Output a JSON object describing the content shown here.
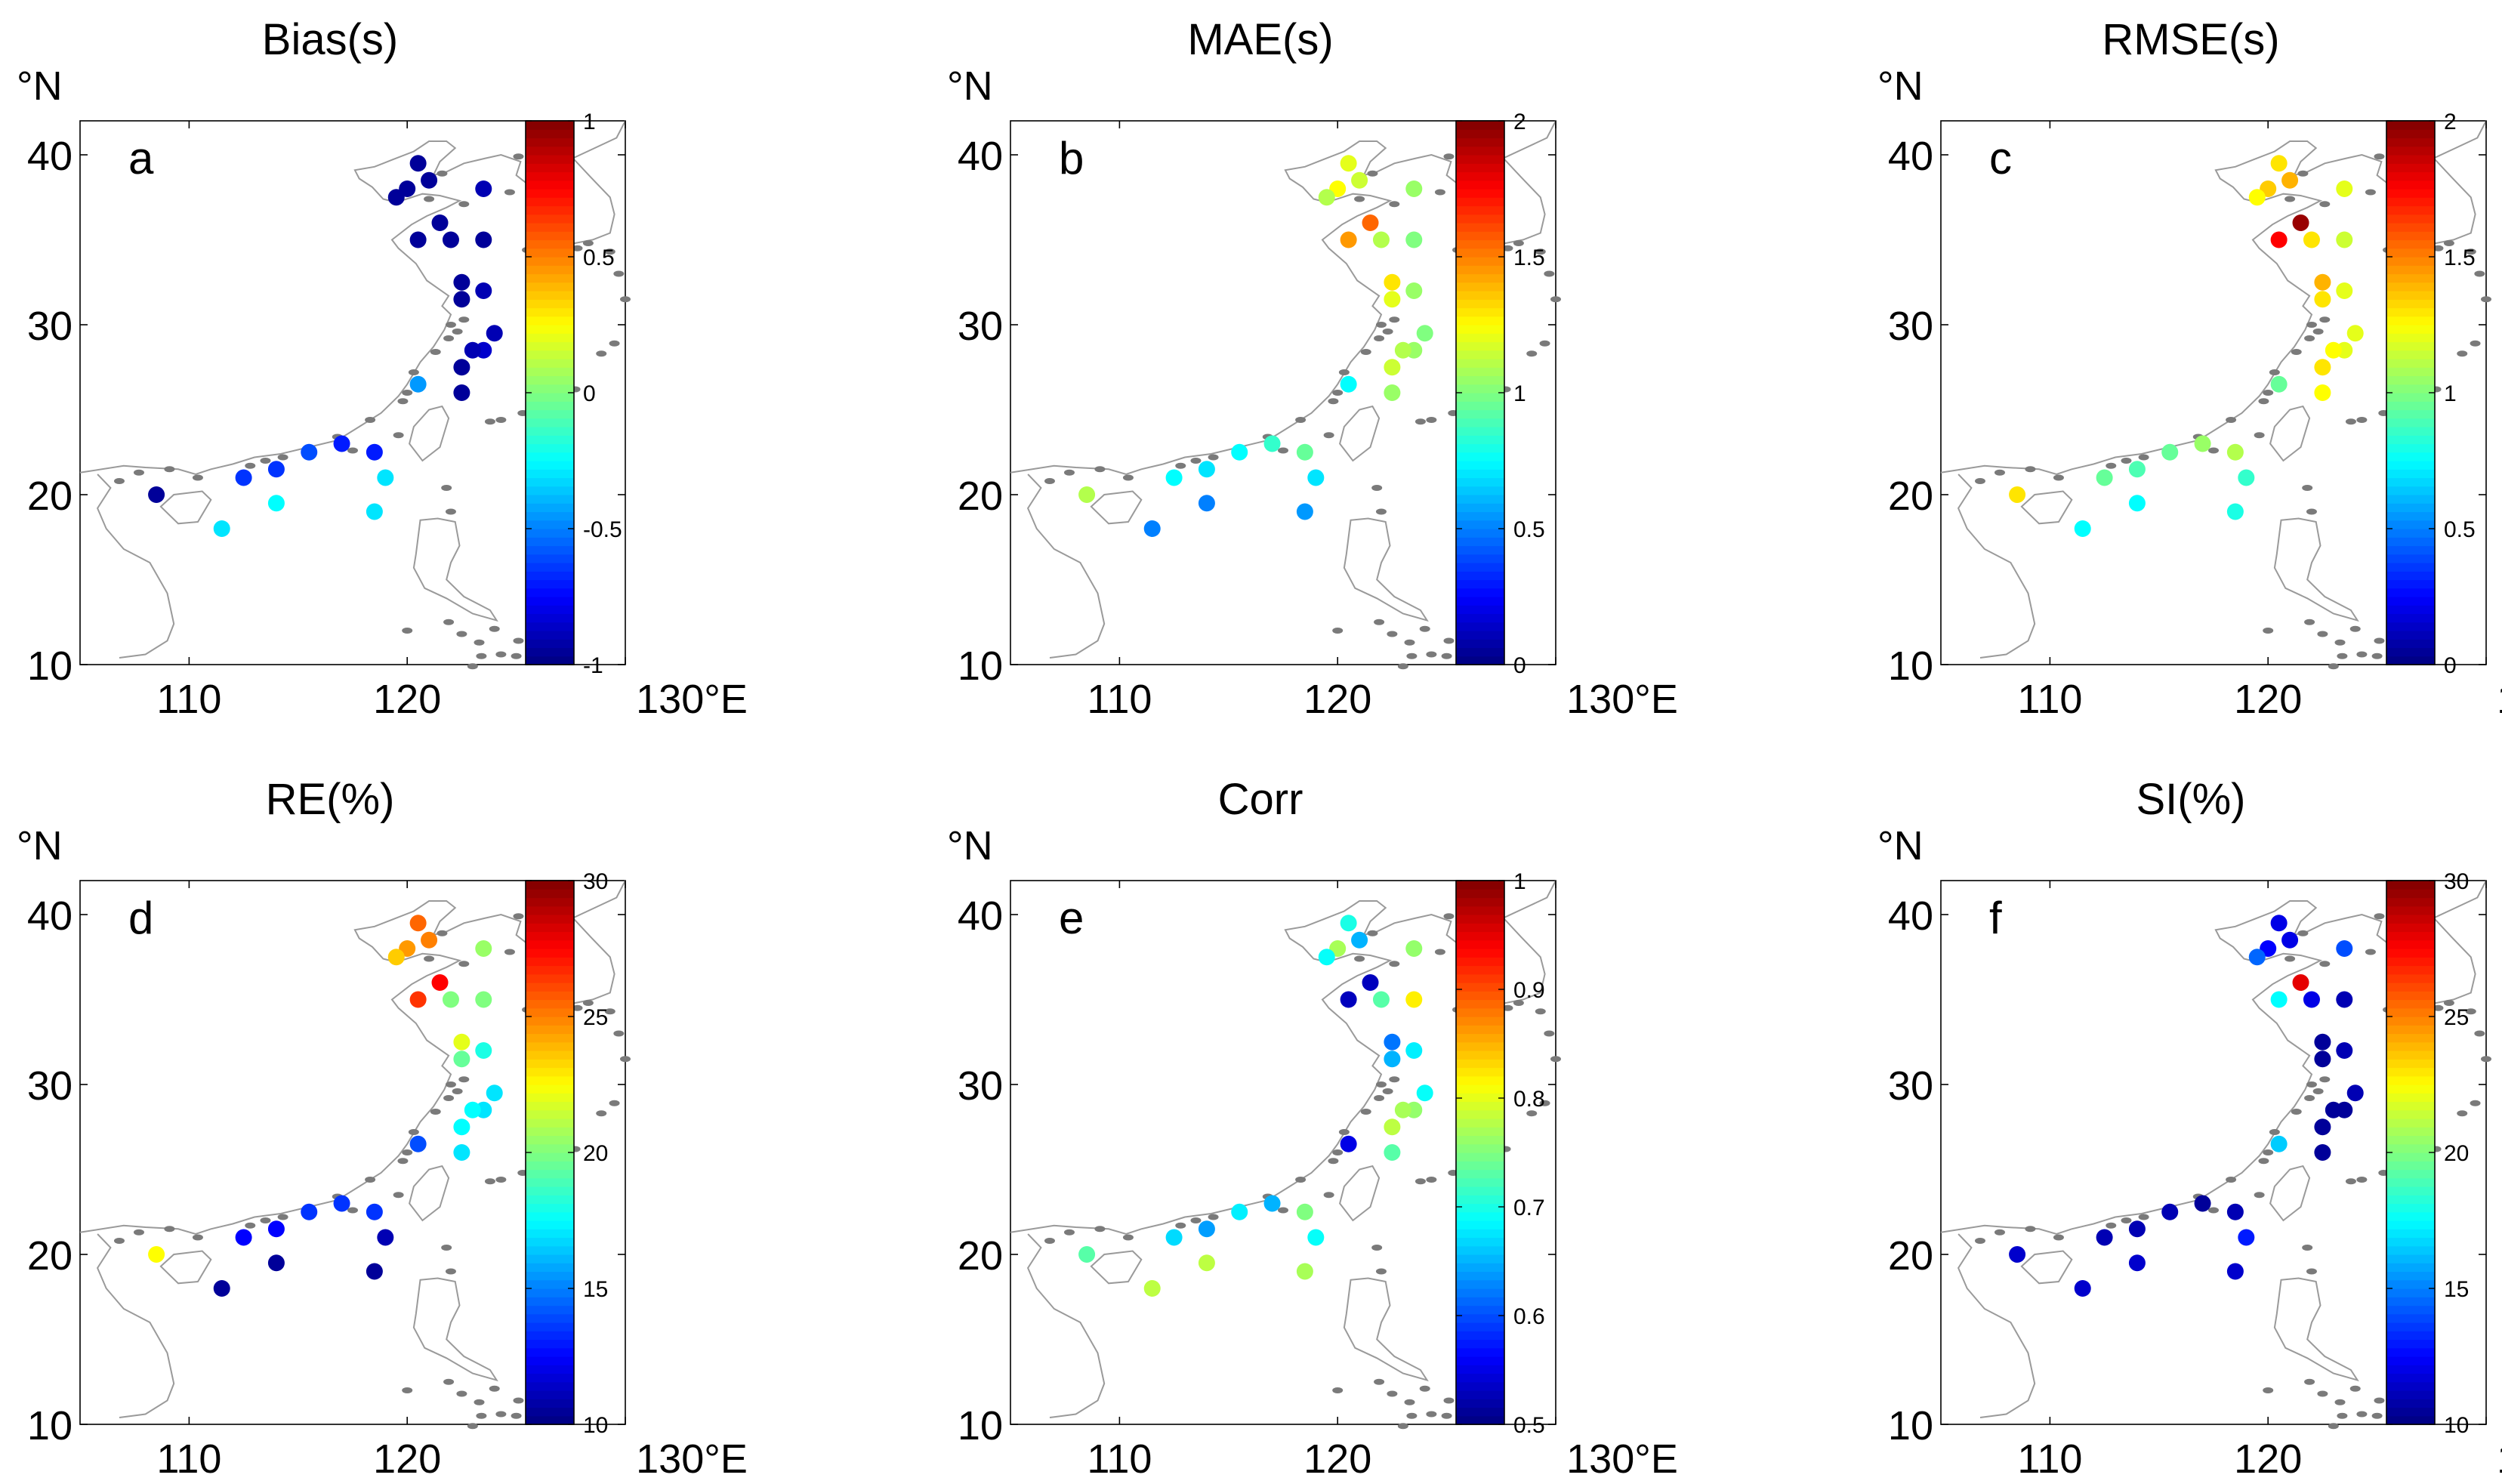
{
  "figure": {
    "lon_unit_label": "130°E",
    "lat_unit_label": "°N",
    "x_ticks": [
      110,
      120,
      130
    ],
    "x_tick_labels": [
      "110",
      "120",
      ""
    ],
    "y_ticks": [
      10,
      20,
      30,
      40
    ],
    "y_tick_labels": [
      "10",
      "20",
      "30",
      "40"
    ],
    "x_range": [
      105,
      130
    ],
    "y_range": [
      10,
      42
    ]
  },
  "chart_data": [
    {
      "type": "scatter",
      "title": "Bias(s)",
      "panel_label": "a",
      "colorbar": {
        "min": -1,
        "max": 1,
        "ticks": [
          -1,
          -0.5,
          0,
          0.5,
          1
        ],
        "tick_labels": [
          "-1",
          "-0.5",
          "0",
          "0.5",
          "1"
        ]
      },
      "stations": [
        {
          "lon": 120.5,
          "lat": 39.5,
          "value": -0.95
        },
        {
          "lon": 121.0,
          "lat": 38.5,
          "value": -0.95
        },
        {
          "lon": 120.0,
          "lat": 38.0,
          "value": -0.95
        },
        {
          "lon": 119.5,
          "lat": 37.5,
          "value": -0.95
        },
        {
          "lon": 123.5,
          "lat": 38.0,
          "value": -0.9
        },
        {
          "lon": 121.5,
          "lat": 36.0,
          "value": -0.95
        },
        {
          "lon": 120.5,
          "lat": 35.0,
          "value": -0.95
        },
        {
          "lon": 122.0,
          "lat": 35.0,
          "value": -0.95
        },
        {
          "lon": 123.5,
          "lat": 35.0,
          "value": -0.95
        },
        {
          "lon": 122.5,
          "lat": 32.5,
          "value": -0.95
        },
        {
          "lon": 123.5,
          "lat": 32.0,
          "value": -0.9
        },
        {
          "lon": 122.5,
          "lat": 31.5,
          "value": -0.95
        },
        {
          "lon": 124.0,
          "lat": 29.5,
          "value": -0.9
        },
        {
          "lon": 123.5,
          "lat": 28.5,
          "value": -0.85
        },
        {
          "lon": 123.0,
          "lat": 28.5,
          "value": -0.9
        },
        {
          "lon": 122.5,
          "lat": 27.5,
          "value": -0.95
        },
        {
          "lon": 122.5,
          "lat": 26.0,
          "value": -0.95
        },
        {
          "lon": 120.5,
          "lat": 26.5,
          "value": -0.45
        },
        {
          "lon": 117.0,
          "lat": 23.0,
          "value": -0.7
        },
        {
          "lon": 118.5,
          "lat": 22.5,
          "value": -0.7
        },
        {
          "lon": 115.5,
          "lat": 22.5,
          "value": -0.6
        },
        {
          "lon": 114.0,
          "lat": 21.5,
          "value": -0.65
        },
        {
          "lon": 112.5,
          "lat": 21.0,
          "value": -0.65
        },
        {
          "lon": 108.5,
          "lat": 20.0,
          "value": -0.95
        },
        {
          "lon": 119.0,
          "lat": 21.0,
          "value": -0.3
        },
        {
          "lon": 114.0,
          "lat": 19.5,
          "value": -0.25
        },
        {
          "lon": 111.5,
          "lat": 18.0,
          "value": -0.3
        },
        {
          "lon": 118.5,
          "lat": 19.0,
          "value": -0.3
        }
      ]
    },
    {
      "type": "scatter",
      "title": "MAE(s)",
      "panel_label": "b",
      "colorbar": {
        "min": 0,
        "max": 2,
        "ticks": [
          0,
          0.5,
          1,
          1.5,
          2
        ],
        "tick_labels": [
          "0",
          "0.5",
          "1",
          "1.5",
          "2"
        ]
      },
      "stations": [
        {
          "lon": 120.5,
          "lat": 39.5,
          "value": 1.2
        },
        {
          "lon": 121.0,
          "lat": 38.5,
          "value": 1.15
        },
        {
          "lon": 120.0,
          "lat": 38.0,
          "value": 1.25
        },
        {
          "lon": 119.5,
          "lat": 37.5,
          "value": 1.1
        },
        {
          "lon": 123.5,
          "lat": 38.0,
          "value": 1.05
        },
        {
          "lon": 121.5,
          "lat": 36.0,
          "value": 1.55
        },
        {
          "lon": 120.5,
          "lat": 35.0,
          "value": 1.45
        },
        {
          "lon": 122.0,
          "lat": 35.0,
          "value": 1.1
        },
        {
          "lon": 123.5,
          "lat": 35.0,
          "value": 1.0
        },
        {
          "lon": 122.5,
          "lat": 32.5,
          "value": 1.3
        },
        {
          "lon": 123.5,
          "lat": 32.0,
          "value": 1.05
        },
        {
          "lon": 122.5,
          "lat": 31.5,
          "value": 1.2
        },
        {
          "lon": 124.0,
          "lat": 29.5,
          "value": 1.0
        },
        {
          "lon": 123.5,
          "lat": 28.5,
          "value": 1.05
        },
        {
          "lon": 123.0,
          "lat": 28.5,
          "value": 1.1
        },
        {
          "lon": 122.5,
          "lat": 27.5,
          "value": 1.15
        },
        {
          "lon": 122.5,
          "lat": 26.0,
          "value": 1.05
        },
        {
          "lon": 120.5,
          "lat": 26.5,
          "value": 0.75
        },
        {
          "lon": 117.0,
          "lat": 23.0,
          "value": 0.85
        },
        {
          "lon": 118.5,
          "lat": 22.5,
          "value": 0.95
        },
        {
          "lon": 115.5,
          "lat": 22.5,
          "value": 0.75
        },
        {
          "lon": 114.0,
          "lat": 21.5,
          "value": 0.7
        },
        {
          "lon": 112.5,
          "lat": 21.0,
          "value": 0.75
        },
        {
          "lon": 108.5,
          "lat": 20.0,
          "value": 1.1
        },
        {
          "lon": 119.0,
          "lat": 21.0,
          "value": 0.7
        },
        {
          "lon": 114.0,
          "lat": 19.5,
          "value": 0.5
        },
        {
          "lon": 111.5,
          "lat": 18.0,
          "value": 0.5
        },
        {
          "lon": 118.5,
          "lat": 19.0,
          "value": 0.55
        }
      ]
    },
    {
      "type": "scatter",
      "title": "RMSE(s)",
      "panel_label": "c",
      "colorbar": {
        "min": 0,
        "max": 2,
        "ticks": [
          0,
          0.5,
          1,
          1.5,
          2
        ],
        "tick_labels": [
          "0",
          "0.5",
          "1",
          "1.5",
          "2"
        ]
      },
      "stations": [
        {
          "lon": 120.5,
          "lat": 39.5,
          "value": 1.3
        },
        {
          "lon": 121.0,
          "lat": 38.5,
          "value": 1.4
        },
        {
          "lon": 120.0,
          "lat": 38.0,
          "value": 1.35
        },
        {
          "lon": 119.5,
          "lat": 37.5,
          "value": 1.25
        },
        {
          "lon": 123.5,
          "lat": 38.0,
          "value": 1.2
        },
        {
          "lon": 121.5,
          "lat": 36.0,
          "value": 1.95
        },
        {
          "lon": 120.5,
          "lat": 35.0,
          "value": 1.75
        },
        {
          "lon": 122.0,
          "lat": 35.0,
          "value": 1.3
        },
        {
          "lon": 123.5,
          "lat": 35.0,
          "value": 1.15
        },
        {
          "lon": 122.5,
          "lat": 32.5,
          "value": 1.4
        },
        {
          "lon": 123.5,
          "lat": 32.0,
          "value": 1.2
        },
        {
          "lon": 122.5,
          "lat": 31.5,
          "value": 1.3
        },
        {
          "lon": 124.0,
          "lat": 29.5,
          "value": 1.2
        },
        {
          "lon": 123.5,
          "lat": 28.5,
          "value": 1.2
        },
        {
          "lon": 123.0,
          "lat": 28.5,
          "value": 1.25
        },
        {
          "lon": 122.5,
          "lat": 27.5,
          "value": 1.3
        },
        {
          "lon": 122.5,
          "lat": 26.0,
          "value": 1.25
        },
        {
          "lon": 120.5,
          "lat": 26.5,
          "value": 0.95
        },
        {
          "lon": 117.0,
          "lat": 23.0,
          "value": 1.05
        },
        {
          "lon": 118.5,
          "lat": 22.5,
          "value": 1.1
        },
        {
          "lon": 115.5,
          "lat": 22.5,
          "value": 0.95
        },
        {
          "lon": 114.0,
          "lat": 21.5,
          "value": 0.9
        },
        {
          "lon": 112.5,
          "lat": 21.0,
          "value": 0.95
        },
        {
          "lon": 108.5,
          "lat": 20.0,
          "value": 1.3
        },
        {
          "lon": 119.0,
          "lat": 21.0,
          "value": 0.85
        },
        {
          "lon": 114.0,
          "lat": 19.5,
          "value": 0.75
        },
        {
          "lon": 111.5,
          "lat": 18.0,
          "value": 0.75
        },
        {
          "lon": 118.5,
          "lat": 19.0,
          "value": 0.8
        }
      ]
    },
    {
      "type": "scatter",
      "title": "RE(%)",
      "panel_label": "d",
      "colorbar": {
        "min": 10,
        "max": 30,
        "ticks": [
          10,
          15,
          20,
          25,
          30
        ],
        "tick_labels": [
          "10",
          "15",
          "20",
          "25",
          "30"
        ]
      },
      "stations": [
        {
          "lon": 120.5,
          "lat": 39.5,
          "value": 25.5
        },
        {
          "lon": 121.0,
          "lat": 38.5,
          "value": 25.0
        },
        {
          "lon": 120.0,
          "lat": 38.0,
          "value": 24.5
        },
        {
          "lon": 119.5,
          "lat": 37.5,
          "value": 23.5
        },
        {
          "lon": 123.5,
          "lat": 38.0,
          "value": 20.5
        },
        {
          "lon": 121.5,
          "lat": 36.0,
          "value": 27.5
        },
        {
          "lon": 120.5,
          "lat": 35.0,
          "value": 26.5
        },
        {
          "lon": 122.0,
          "lat": 35.0,
          "value": 20.0
        },
        {
          "lon": 123.5,
          "lat": 35.0,
          "value": 20.0
        },
        {
          "lon": 122.5,
          "lat": 32.5,
          "value": 22.0
        },
        {
          "lon": 123.5,
          "lat": 32.0,
          "value": 18.0
        },
        {
          "lon": 122.5,
          "lat": 31.5,
          "value": 19.5
        },
        {
          "lon": 124.0,
          "lat": 29.5,
          "value": 17.0
        },
        {
          "lon": 123.5,
          "lat": 28.5,
          "value": 17.0
        },
        {
          "lon": 123.0,
          "lat": 28.5,
          "value": 17.5
        },
        {
          "lon": 122.5,
          "lat": 27.5,
          "value": 17.5
        },
        {
          "lon": 122.5,
          "lat": 26.0,
          "value": 17.0
        },
        {
          "lon": 120.5,
          "lat": 26.5,
          "value": 14.0
        },
        {
          "lon": 117.0,
          "lat": 23.0,
          "value": 13.5
        },
        {
          "lon": 118.5,
          "lat": 22.5,
          "value": 13.5
        },
        {
          "lon": 115.5,
          "lat": 22.5,
          "value": 13.5
        },
        {
          "lon": 114.0,
          "lat": 21.5,
          "value": 12.5
        },
        {
          "lon": 112.5,
          "lat": 21.0,
          "value": 12.5
        },
        {
          "lon": 108.5,
          "lat": 20.0,
          "value": 22.5
        },
        {
          "lon": 119.0,
          "lat": 21.0,
          "value": 11.0
        },
        {
          "lon": 114.0,
          "lat": 19.5,
          "value": 10.5
        },
        {
          "lon": 111.5,
          "lat": 18.0,
          "value": 10.5
        },
        {
          "lon": 118.5,
          "lat": 19.0,
          "value": 10.5
        }
      ]
    },
    {
      "type": "scatter",
      "title": "Corr",
      "panel_label": "e",
      "colorbar": {
        "min": 0.5,
        "max": 1,
        "ticks": [
          0.5,
          0.6,
          0.7,
          0.8,
          0.9,
          1
        ],
        "tick_labels": [
          "0.5",
          "0.6",
          "0.7",
          "0.8",
          "0.9",
          "1"
        ]
      },
      "stations": [
        {
          "lon": 120.5,
          "lat": 39.5,
          "value": 0.7
        },
        {
          "lon": 121.0,
          "lat": 38.5,
          "value": 0.65
        },
        {
          "lon": 120.0,
          "lat": 38.0,
          "value": 0.77
        },
        {
          "lon": 119.5,
          "lat": 37.5,
          "value": 0.69
        },
        {
          "lon": 123.5,
          "lat": 38.0,
          "value": 0.76
        },
        {
          "lon": 121.5,
          "lat": 36.0,
          "value": 0.53
        },
        {
          "lon": 120.5,
          "lat": 35.0,
          "value": 0.53
        },
        {
          "lon": 122.0,
          "lat": 35.0,
          "value": 0.73
        },
        {
          "lon": 123.5,
          "lat": 35.0,
          "value": 0.82
        },
        {
          "lon": 122.5,
          "lat": 32.5,
          "value": 0.62
        },
        {
          "lon": 123.5,
          "lat": 32.0,
          "value": 0.68
        },
        {
          "lon": 122.5,
          "lat": 31.5,
          "value": 0.65
        },
        {
          "lon": 124.0,
          "lat": 29.5,
          "value": 0.69
        },
        {
          "lon": 123.5,
          "lat": 28.5,
          "value": 0.76
        },
        {
          "lon": 123.0,
          "lat": 28.5,
          "value": 0.77
        },
        {
          "lon": 122.5,
          "lat": 27.5,
          "value": 0.78
        },
        {
          "lon": 122.5,
          "lat": 26.0,
          "value": 0.73
        },
        {
          "lon": 120.5,
          "lat": 26.5,
          "value": 0.55
        },
        {
          "lon": 117.0,
          "lat": 23.0,
          "value": 0.65
        },
        {
          "lon": 118.5,
          "lat": 22.5,
          "value": 0.75
        },
        {
          "lon": 115.5,
          "lat": 22.5,
          "value": 0.68
        },
        {
          "lon": 114.0,
          "lat": 21.5,
          "value": 0.64
        },
        {
          "lon": 112.5,
          "lat": 21.0,
          "value": 0.67
        },
        {
          "lon": 108.5,
          "lat": 20.0,
          "value": 0.73
        },
        {
          "lon": 119.0,
          "lat": 21.0,
          "value": 0.69
        },
        {
          "lon": 114.0,
          "lat": 19.5,
          "value": 0.78
        },
        {
          "lon": 111.5,
          "lat": 18.0,
          "value": 0.78
        },
        {
          "lon": 118.5,
          "lat": 19.0,
          "value": 0.77
        }
      ]
    },
    {
      "type": "scatter",
      "title": "SI(%)",
      "panel_label": "f",
      "colorbar": {
        "min": 10,
        "max": 30,
        "ticks": [
          10,
          15,
          20,
          25,
          30
        ],
        "tick_labels": [
          "10",
          "15",
          "20",
          "25",
          "30"
        ]
      },
      "stations": [
        {
          "lon": 120.5,
          "lat": 39.5,
          "value": 12.0
        },
        {
          "lon": 121.0,
          "lat": 38.5,
          "value": 12.0
        },
        {
          "lon": 120.0,
          "lat": 38.0,
          "value": 12.5
        },
        {
          "lon": 119.5,
          "lat": 37.5,
          "value": 14.5
        },
        {
          "lon": 123.5,
          "lat": 38.0,
          "value": 14.0
        },
        {
          "lon": 121.5,
          "lat": 36.0,
          "value": 28.0
        },
        {
          "lon": 120.5,
          "lat": 35.0,
          "value": 17.5
        },
        {
          "lon": 122.0,
          "lat": 35.0,
          "value": 12.0
        },
        {
          "lon": 123.5,
          "lat": 35.0,
          "value": 11.0
        },
        {
          "lon": 122.5,
          "lat": 32.5,
          "value": 10.5
        },
        {
          "lon": 123.5,
          "lat": 32.0,
          "value": 11.0
        },
        {
          "lon": 122.5,
          "lat": 31.5,
          "value": 10.5
        },
        {
          "lon": 124.0,
          "lat": 29.5,
          "value": 11.0
        },
        {
          "lon": 123.5,
          "lat": 28.5,
          "value": 10.5
        },
        {
          "lon": 123.0,
          "lat": 28.5,
          "value": 10.5
        },
        {
          "lon": 122.5,
          "lat": 27.5,
          "value": 10.5
        },
        {
          "lon": 122.5,
          "lat": 26.0,
          "value": 10.5
        },
        {
          "lon": 120.5,
          "lat": 26.5,
          "value": 16.5
        },
        {
          "lon": 117.0,
          "lat": 23.0,
          "value": 10.5
        },
        {
          "lon": 118.5,
          "lat": 22.5,
          "value": 11.0
        },
        {
          "lon": 115.5,
          "lat": 22.5,
          "value": 11.0
        },
        {
          "lon": 114.0,
          "lat": 21.5,
          "value": 11.0
        },
        {
          "lon": 112.5,
          "lat": 21.0,
          "value": 11.0
        },
        {
          "lon": 108.5,
          "lat": 20.0,
          "value": 11.5
        },
        {
          "lon": 119.0,
          "lat": 21.0,
          "value": 13.0
        },
        {
          "lon": 114.0,
          "lat": 19.5,
          "value": 11.5
        },
        {
          "lon": 111.5,
          "lat": 18.0,
          "value": 11.5
        },
        {
          "lon": 118.5,
          "lat": 19.0,
          "value": 11.5
        }
      ]
    }
  ]
}
